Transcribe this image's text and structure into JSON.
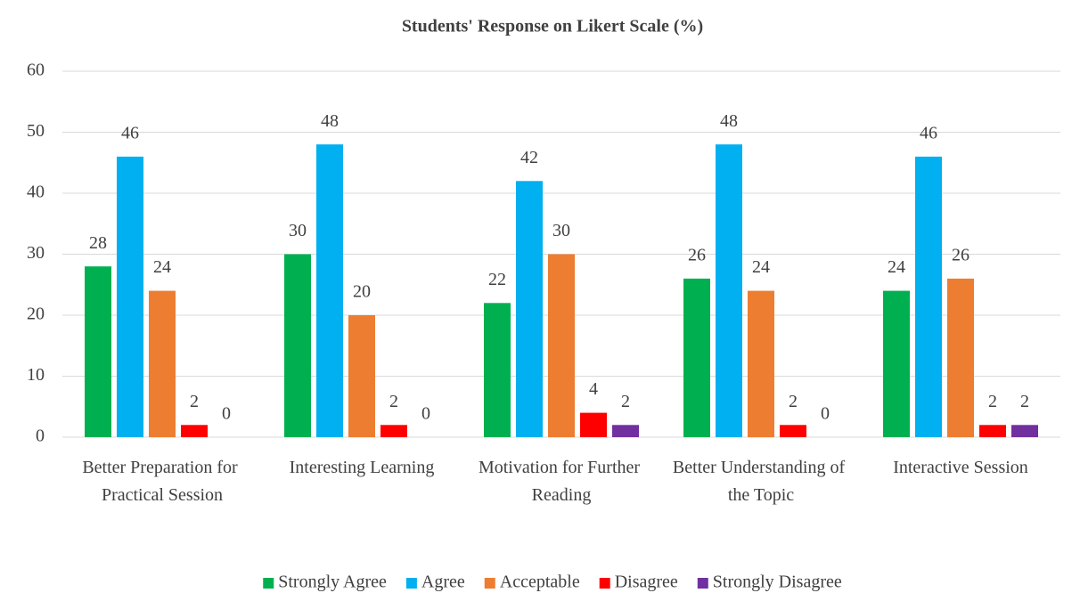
{
  "chart_data": {
    "type": "bar",
    "title": "Students' Response on Likert Scale (%)",
    "categories": [
      "Better Preparation for Practical Session",
      "Interesting Learning",
      "Motivation for Further Reading",
      "Better Understanding of the Topic",
      "Interactive Session"
    ],
    "series": [
      {
        "name": "Strongly Agree",
        "color": "#00b050",
        "values": [
          28,
          30,
          22,
          26,
          24
        ]
      },
      {
        "name": "Agree",
        "color": "#00b0f0",
        "values": [
          46,
          48,
          42,
          48,
          46
        ]
      },
      {
        "name": "Acceptable",
        "color": "#ed7d31",
        "values": [
          24,
          20,
          30,
          24,
          26
        ]
      },
      {
        "name": "Disagree",
        "color": "#ff0000",
        "values": [
          2,
          2,
          4,
          2,
          2
        ]
      },
      {
        "name": "Strongly Disagree",
        "color": "#7030a0",
        "values": [
          0,
          0,
          2,
          0,
          2
        ]
      }
    ],
    "ylim": [
      0,
      60
    ],
    "yticks": [
      0,
      10,
      20,
      30,
      40,
      50,
      60
    ],
    "grid": true,
    "legend": "bottom"
  }
}
